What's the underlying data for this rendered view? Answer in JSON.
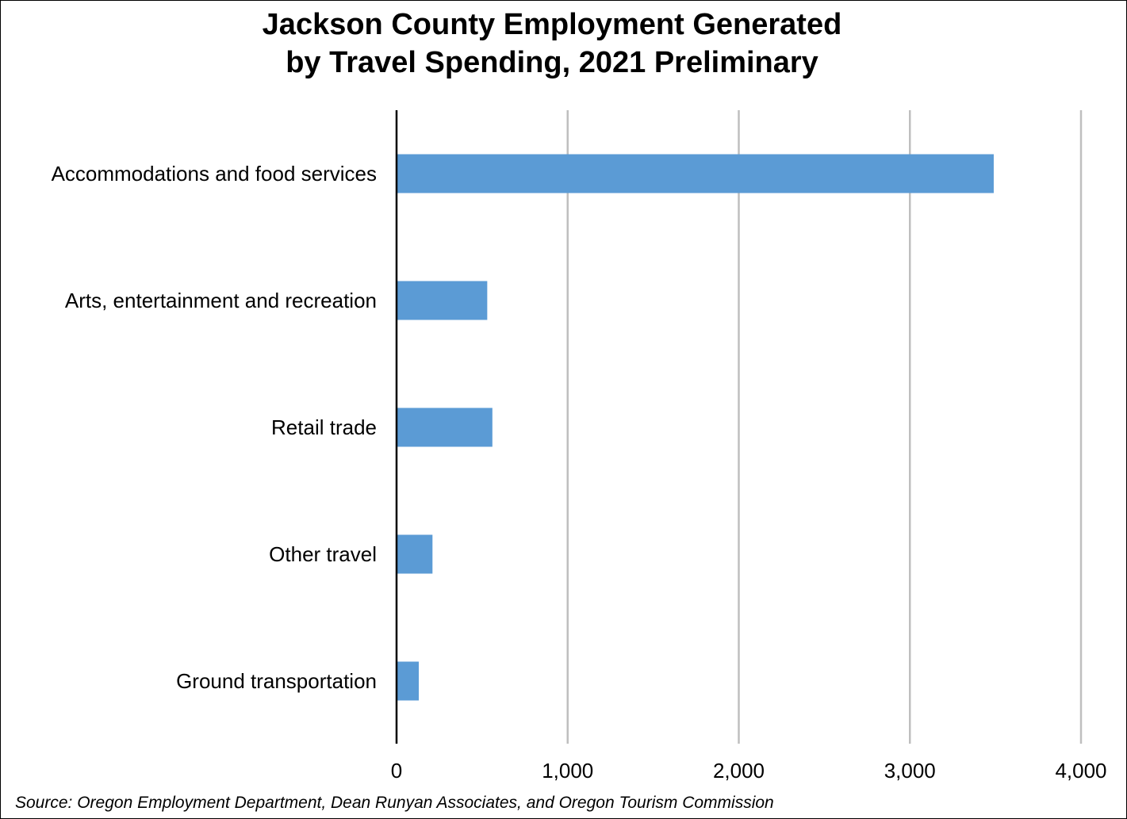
{
  "chart_data": {
    "type": "bar",
    "orientation": "horizontal",
    "title": [
      "Jackson County Employment Generated",
      "by Travel Spending, 2021 Preliminary"
    ],
    "categories": [
      "Accommodations and food services",
      "Arts, entertainment and recreation",
      "Retail trade",
      "Other travel",
      "Ground transportation"
    ],
    "values": [
      3490,
      530,
      560,
      210,
      130
    ],
    "xlim": [
      0,
      4000
    ],
    "xticks": [
      0,
      1000,
      2000,
      3000,
      4000
    ],
    "xtick_labels": [
      "0",
      "1,000",
      "2,000",
      "3,000",
      "4,000"
    ],
    "grid": "vertical",
    "legend": "none",
    "bar_color": "#5b9bd5",
    "grid_color": "#bfbfbf"
  },
  "source": "Source: Oregon Employment Department, Dean Runyan Associates, and Oregon Tourism Commission"
}
